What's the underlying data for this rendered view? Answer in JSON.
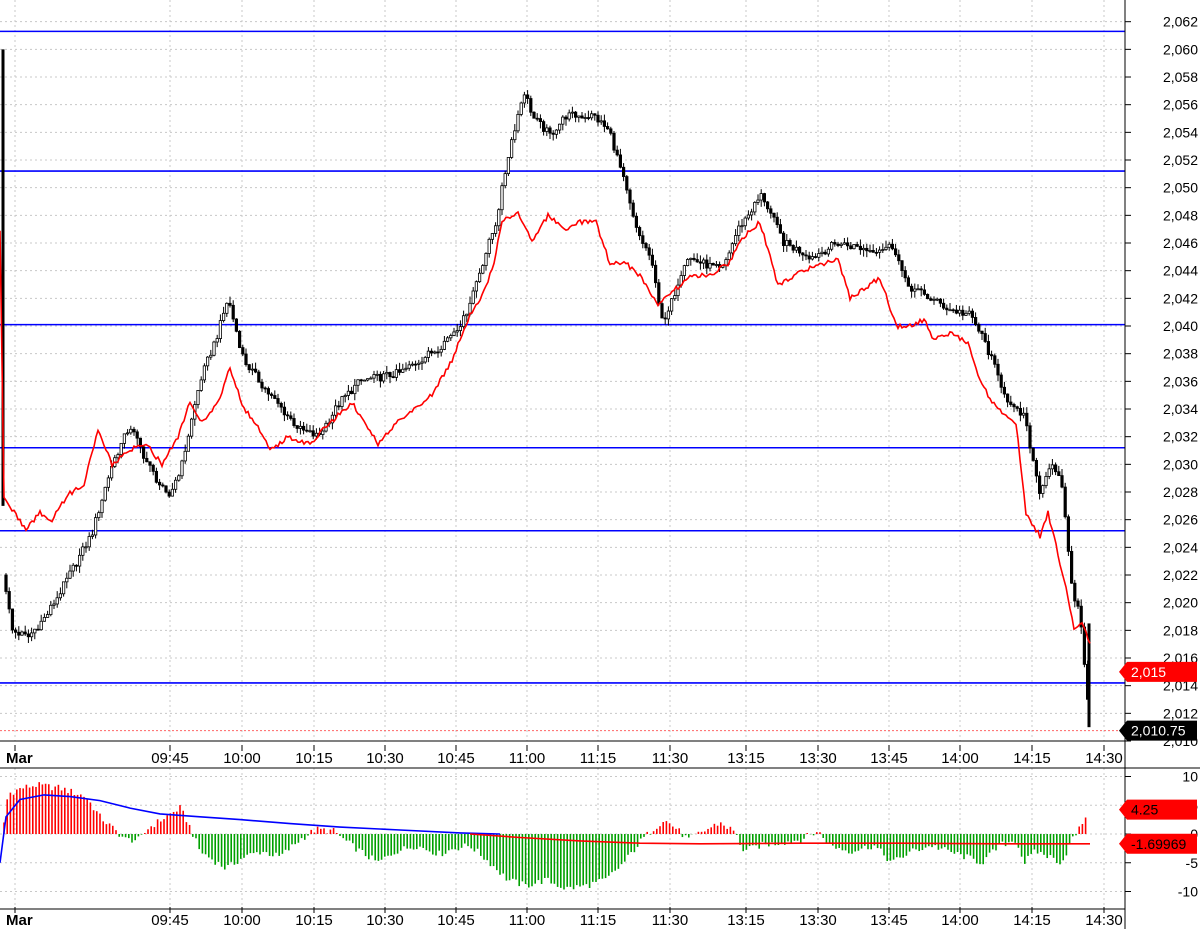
{
  "colors": {
    "candle_up": "#ffffff",
    "candle_down": "#000000",
    "price_ma": "#ff0000",
    "level_line": "#0000ff",
    "hist_positive": "#ff0000",
    "hist_negative": "#00a000",
    "osc_signal": "#0000ff",
    "osc_line": "#ff0000",
    "grid": "#c8c8c8"
  },
  "chart_data": [
    {
      "type": "candlestick",
      "title": "",
      "ylim": [
        2010,
        2062.7
      ],
      "grid": true,
      "y_ticks": [
        "2,062",
        "2,060",
        "2,058",
        "2,056",
        "2,054",
        "2,052",
        "2,050",
        "2,048",
        "2,046",
        "2,044",
        "2,042",
        "2,040",
        "2,038",
        "2,036",
        "2,034",
        "2,032",
        "2,030",
        "2,028",
        "2,026",
        "2,024",
        "2,022",
        "2,020",
        "2,018",
        "2,016",
        "2,014",
        "2,012",
        "2,010"
      ],
      "x_labels": [
        "Mar",
        "09:45",
        "10:00",
        "10:15",
        "10:30",
        "10:45",
        "11:00",
        "11:15",
        "11:30",
        "13:15",
        "13:30",
        "13:45",
        "14:00",
        "14:15",
        "14:30"
      ],
      "horizontal_levels": [
        2061.3,
        2051.2,
        2040.1,
        2031.2,
        2025.2,
        2014.2
      ],
      "ref_line": 2010.75,
      "price_tag": {
        "label": "2,015",
        "value": 2015
      },
      "last_tag": {
        "label": "2,010.75",
        "value": 2010.75
      },
      "close_keyframes": [
        {
          "x": 0,
          "y": 2062
        },
        {
          "x": 2,
          "y": 2060
        },
        {
          "x": 4,
          "y": 2022
        },
        {
          "x": 12,
          "y": 2018
        },
        {
          "x": 28,
          "y": 2017.5
        },
        {
          "x": 46,
          "y": 2019
        },
        {
          "x": 62,
          "y": 2021
        },
        {
          "x": 92,
          "y": 2025
        },
        {
          "x": 112,
          "y": 2030
        },
        {
          "x": 130,
          "y": 2032.8
        },
        {
          "x": 148,
          "y": 2030
        },
        {
          "x": 168,
          "y": 2027.5
        },
        {
          "x": 182,
          "y": 2030
        },
        {
          "x": 200,
          "y": 2036
        },
        {
          "x": 218,
          "y": 2039.5
        },
        {
          "x": 228,
          "y": 2042
        },
        {
          "x": 244,
          "y": 2037.5
        },
        {
          "x": 270,
          "y": 2035
        },
        {
          "x": 300,
          "y": 2032.5
        },
        {
          "x": 318,
          "y": 2032
        },
        {
          "x": 340,
          "y": 2034.5
        },
        {
          "x": 360,
          "y": 2036
        },
        {
          "x": 400,
          "y": 2036.6
        },
        {
          "x": 440,
          "y": 2038.5
        },
        {
          "x": 464,
          "y": 2040.5
        },
        {
          "x": 480,
          "y": 2044
        },
        {
          "x": 496,
          "y": 2047.5
        },
        {
          "x": 510,
          "y": 2053
        },
        {
          "x": 524,
          "y": 2057
        },
        {
          "x": 534,
          "y": 2055
        },
        {
          "x": 550,
          "y": 2053.8
        },
        {
          "x": 566,
          "y": 2055.2
        },
        {
          "x": 594,
          "y": 2055.2
        },
        {
          "x": 610,
          "y": 2054
        },
        {
          "x": 622,
          "y": 2051
        },
        {
          "x": 636,
          "y": 2047
        },
        {
          "x": 650,
          "y": 2045
        },
        {
          "x": 664,
          "y": 2040
        },
        {
          "x": 686,
          "y": 2045
        },
        {
          "x": 704,
          "y": 2044.5
        },
        {
          "x": 722,
          "y": 2044
        },
        {
          "x": 738,
          "y": 2047
        },
        {
          "x": 762,
          "y": 2049.5
        },
        {
          "x": 784,
          "y": 2046
        },
        {
          "x": 812,
          "y": 2045
        },
        {
          "x": 838,
          "y": 2046
        },
        {
          "x": 870,
          "y": 2045.5
        },
        {
          "x": 894,
          "y": 2045.8
        },
        {
          "x": 906,
          "y": 2043
        },
        {
          "x": 930,
          "y": 2042
        },
        {
          "x": 950,
          "y": 2041.2
        },
        {
          "x": 970,
          "y": 2040.8
        },
        {
          "x": 984,
          "y": 2039
        },
        {
          "x": 1000,
          "y": 2036
        },
        {
          "x": 1012,
          "y": 2034
        },
        {
          "x": 1024,
          "y": 2033.5
        },
        {
          "x": 1034,
          "y": 2030
        },
        {
          "x": 1040,
          "y": 2028
        },
        {
          "x": 1050,
          "y": 2030
        },
        {
          "x": 1062,
          "y": 2028.5
        },
        {
          "x": 1068,
          "y": 2024
        },
        {
          "x": 1074,
          "y": 2020
        },
        {
          "x": 1080,
          "y": 2019.5
        },
        {
          "x": 1090,
          "y": 2011
        }
      ],
      "ma_keyframes": [
        {
          "x": 0,
          "y": 2047
        },
        {
          "x": 4,
          "y": 2027.5
        },
        {
          "x": 14,
          "y": 2026.5
        },
        {
          "x": 26,
          "y": 2025.3
        },
        {
          "x": 40,
          "y": 2026.5
        },
        {
          "x": 52,
          "y": 2026
        },
        {
          "x": 68,
          "y": 2027.8
        },
        {
          "x": 84,
          "y": 2028.5
        },
        {
          "x": 98,
          "y": 2032.5
        },
        {
          "x": 112,
          "y": 2030
        },
        {
          "x": 128,
          "y": 2031
        },
        {
          "x": 146,
          "y": 2031.5
        },
        {
          "x": 162,
          "y": 2030
        },
        {
          "x": 178,
          "y": 2032
        },
        {
          "x": 190,
          "y": 2034.5
        },
        {
          "x": 202,
          "y": 2033
        },
        {
          "x": 218,
          "y": 2034.5
        },
        {
          "x": 230,
          "y": 2037
        },
        {
          "x": 244,
          "y": 2034
        },
        {
          "x": 256,
          "y": 2033
        },
        {
          "x": 270,
          "y": 2031
        },
        {
          "x": 288,
          "y": 2032
        },
        {
          "x": 310,
          "y": 2031.5
        },
        {
          "x": 330,
          "y": 2033
        },
        {
          "x": 352,
          "y": 2034.5
        },
        {
          "x": 378,
          "y": 2031.5
        },
        {
          "x": 396,
          "y": 2033
        },
        {
          "x": 414,
          "y": 2034
        },
        {
          "x": 432,
          "y": 2035
        },
        {
          "x": 452,
          "y": 2037.5
        },
        {
          "x": 468,
          "y": 2040.5
        },
        {
          "x": 480,
          "y": 2042
        },
        {
          "x": 492,
          "y": 2044
        },
        {
          "x": 502,
          "y": 2047.5
        },
        {
          "x": 518,
          "y": 2048.3
        },
        {
          "x": 532,
          "y": 2046
        },
        {
          "x": 548,
          "y": 2048
        },
        {
          "x": 564,
          "y": 2047
        },
        {
          "x": 580,
          "y": 2047.5
        },
        {
          "x": 596,
          "y": 2047.5
        },
        {
          "x": 610,
          "y": 2044.5
        },
        {
          "x": 626,
          "y": 2044.5
        },
        {
          "x": 642,
          "y": 2043.5
        },
        {
          "x": 658,
          "y": 2041.5
        },
        {
          "x": 672,
          "y": 2042.5
        },
        {
          "x": 690,
          "y": 2043.5
        },
        {
          "x": 712,
          "y": 2043.8
        },
        {
          "x": 728,
          "y": 2044.5
        },
        {
          "x": 744,
          "y": 2046.5
        },
        {
          "x": 760,
          "y": 2047.5
        },
        {
          "x": 778,
          "y": 2043
        },
        {
          "x": 798,
          "y": 2043.8
        },
        {
          "x": 822,
          "y": 2044.5
        },
        {
          "x": 838,
          "y": 2044.8
        },
        {
          "x": 850,
          "y": 2042
        },
        {
          "x": 866,
          "y": 2042.8
        },
        {
          "x": 880,
          "y": 2043.5
        },
        {
          "x": 896,
          "y": 2040
        },
        {
          "x": 910,
          "y": 2040
        },
        {
          "x": 924,
          "y": 2040.5
        },
        {
          "x": 934,
          "y": 2039
        },
        {
          "x": 950,
          "y": 2039.5
        },
        {
          "x": 968,
          "y": 2038.8
        },
        {
          "x": 980,
          "y": 2036
        },
        {
          "x": 992,
          "y": 2034.5
        },
        {
          "x": 1004,
          "y": 2033.5
        },
        {
          "x": 1016,
          "y": 2033
        },
        {
          "x": 1026,
          "y": 2026.5
        },
        {
          "x": 1040,
          "y": 2024.8
        },
        {
          "x": 1048,
          "y": 2026.5
        },
        {
          "x": 1058,
          "y": 2023.5
        },
        {
          "x": 1068,
          "y": 2020.5
        },
        {
          "x": 1074,
          "y": 2018
        },
        {
          "x": 1082,
          "y": 2018.5
        },
        {
          "x": 1090,
          "y": 2017
        }
      ]
    },
    {
      "type": "histogram-oscillator",
      "title": "",
      "ylim": [
        -12,
        12
      ],
      "y_ticks": [
        "10",
        "5",
        "0",
        "-5",
        "-10"
      ],
      "x_labels": [
        "Mar",
        "09:45",
        "10:00",
        "10:15",
        "10:30",
        "10:45",
        "11:00",
        "11:15",
        "11:30",
        "13:15",
        "13:30",
        "13:45",
        "14:00",
        "14:15",
        "14:30"
      ],
      "histogram_tag": {
        "label": "4.25",
        "value": 4.25
      },
      "line_tag": {
        "label": "-1.69969",
        "value": -1.69969
      },
      "hist_keyframes": [
        {
          "x": 4,
          "y": 2
        },
        {
          "x": 8,
          "y": 7
        },
        {
          "x": 22,
          "y": 8
        },
        {
          "x": 36,
          "y": 8.5
        },
        {
          "x": 60,
          "y": 8
        },
        {
          "x": 86,
          "y": 6.5
        },
        {
          "x": 100,
          "y": 3
        },
        {
          "x": 116,
          "y": 0.5
        },
        {
          "x": 126,
          "y": -1
        },
        {
          "x": 140,
          "y": -1
        },
        {
          "x": 148,
          "y": 1
        },
        {
          "x": 166,
          "y": 3
        },
        {
          "x": 180,
          "y": 4.5
        },
        {
          "x": 188,
          "y": 2
        },
        {
          "x": 200,
          "y": -3
        },
        {
          "x": 226,
          "y": -6
        },
        {
          "x": 244,
          "y": -4
        },
        {
          "x": 262,
          "y": -3
        },
        {
          "x": 280,
          "y": -4
        },
        {
          "x": 300,
          "y": -1
        },
        {
          "x": 316,
          "y": 0.8
        },
        {
          "x": 334,
          "y": 0.5
        },
        {
          "x": 344,
          "y": -1
        },
        {
          "x": 360,
          "y": -3
        },
        {
          "x": 378,
          "y": -5
        },
        {
          "x": 396,
          "y": -3
        },
        {
          "x": 416,
          "y": -2
        },
        {
          "x": 440,
          "y": -3.5
        },
        {
          "x": 454,
          "y": -2.5
        },
        {
          "x": 470,
          "y": -2
        },
        {
          "x": 490,
          "y": -5
        },
        {
          "x": 508,
          "y": -8
        },
        {
          "x": 526,
          "y": -9
        },
        {
          "x": 546,
          "y": -8
        },
        {
          "x": 566,
          "y": -9.5
        },
        {
          "x": 586,
          "y": -9
        },
        {
          "x": 606,
          "y": -8
        },
        {
          "x": 624,
          "y": -5
        },
        {
          "x": 642,
          "y": -1
        },
        {
          "x": 654,
          "y": 1
        },
        {
          "x": 664,
          "y": 2.5
        },
        {
          "x": 676,
          "y": 1
        },
        {
          "x": 688,
          "y": -1
        },
        {
          "x": 704,
          "y": 0.5
        },
        {
          "x": 720,
          "y": 2
        },
        {
          "x": 734,
          "y": 0.5
        },
        {
          "x": 744,
          "y": -3
        },
        {
          "x": 760,
          "y": -2
        },
        {
          "x": 780,
          "y": -1.5
        },
        {
          "x": 800,
          "y": -1
        },
        {
          "x": 818,
          "y": 0.5
        },
        {
          "x": 830,
          "y": -2
        },
        {
          "x": 850,
          "y": -3
        },
        {
          "x": 874,
          "y": -2
        },
        {
          "x": 892,
          "y": -5
        },
        {
          "x": 912,
          "y": -3
        },
        {
          "x": 932,
          "y": -2
        },
        {
          "x": 948,
          "y": -3
        },
        {
          "x": 966,
          "y": -4
        },
        {
          "x": 982,
          "y": -5
        },
        {
          "x": 1000,
          "y": -2
        },
        {
          "x": 1016,
          "y": -1
        },
        {
          "x": 1024,
          "y": -5
        },
        {
          "x": 1036,
          "y": -3
        },
        {
          "x": 1050,
          "y": -4
        },
        {
          "x": 1062,
          "y": -5
        },
        {
          "x": 1072,
          "y": -1
        },
        {
          "x": 1080,
          "y": 1
        },
        {
          "x": 1088,
          "y": 4.25
        }
      ],
      "signal_keyframes": [
        {
          "x": 0,
          "y": -5
        },
        {
          "x": 6,
          "y": 3
        },
        {
          "x": 20,
          "y": 6
        },
        {
          "x": 44,
          "y": 6.8
        },
        {
          "x": 70,
          "y": 6.5
        },
        {
          "x": 100,
          "y": 5.8
        },
        {
          "x": 130,
          "y": 4.5
        },
        {
          "x": 160,
          "y": 3.5
        },
        {
          "x": 200,
          "y": 3
        },
        {
          "x": 240,
          "y": 2.5
        },
        {
          "x": 290,
          "y": 1.8
        },
        {
          "x": 340,
          "y": 1.2
        },
        {
          "x": 400,
          "y": 0.7
        },
        {
          "x": 460,
          "y": 0.2
        },
        {
          "x": 500,
          "y": 0
        }
      ],
      "line_keyframes": [
        {
          "x": 470,
          "y": 0
        },
        {
          "x": 520,
          "y": -0.6
        },
        {
          "x": 580,
          "y": -1.2
        },
        {
          "x": 640,
          "y": -1.6
        },
        {
          "x": 700,
          "y": -1.7
        },
        {
          "x": 800,
          "y": -1.6
        },
        {
          "x": 900,
          "y": -1.6
        },
        {
          "x": 1000,
          "y": -1.7
        },
        {
          "x": 1090,
          "y": -1.7
        }
      ]
    }
  ]
}
